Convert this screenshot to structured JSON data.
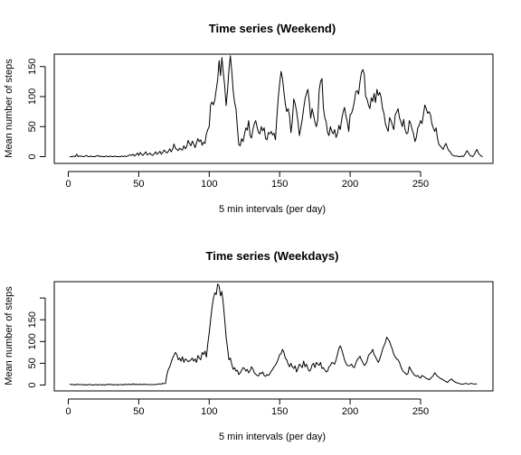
{
  "chart_data": [
    {
      "type": "line",
      "title": "Time series (Weekend)",
      "xlabel": "5 min intervals (per day)",
      "ylabel": "Mean number of steps",
      "xlim": [
        0,
        288
      ],
      "ylim": [
        0,
        170
      ],
      "xticks": [
        0,
        50,
        100,
        150,
        200,
        250
      ],
      "yticks": [
        0,
        50,
        100,
        150
      ],
      "x_start": 1,
      "values": [
        0,
        0,
        0,
        1,
        0,
        4,
        0,
        1,
        1,
        0,
        0,
        1,
        2,
        0,
        0,
        1,
        0,
        0,
        0,
        1,
        2,
        0,
        1,
        0,
        0,
        0,
        1,
        0,
        0,
        1,
        0,
        0,
        1,
        0,
        0,
        0,
        0,
        1,
        0,
        1,
        0,
        1,
        2,
        3,
        2,
        4,
        1,
        3,
        6,
        2,
        7,
        4,
        2,
        5,
        8,
        3,
        4,
        6,
        3,
        2,
        5,
        8,
        4,
        6,
        9,
        4,
        7,
        11,
        8,
        6,
        9,
        13,
        8,
        12,
        21,
        14,
        12,
        10,
        14,
        12,
        11,
        18,
        13,
        16,
        27,
        22,
        18,
        26,
        21,
        15,
        23,
        30,
        25,
        28,
        19,
        24,
        22,
        38,
        45,
        50,
        87,
        91,
        86,
        95,
        112,
        128,
        160,
        135,
        165,
        140,
        118,
        85,
        110,
        145,
        168,
        142,
        110,
        90,
        80,
        48,
        20,
        18,
        30,
        25,
        37,
        48,
        44,
        60,
        35,
        31,
        45,
        55,
        60,
        49,
        40,
        38,
        50,
        43,
        48,
        30,
        28,
        40,
        38,
        42,
        36,
        39,
        28,
        65,
        98,
        122,
        142,
        130,
        108,
        88,
        75,
        80,
        68,
        40,
        60,
        96,
        88,
        75,
        58,
        35,
        48,
        62,
        80,
        96,
        105,
        112,
        92,
        64,
        80,
        70,
        58,
        50,
        60,
        110,
        125,
        130,
        82,
        65,
        58,
        40,
        35,
        50,
        42,
        38,
        45,
        32,
        38,
        52,
        45,
        62,
        74,
        82,
        68,
        58,
        42,
        70,
        72,
        80,
        92,
        108,
        110,
        104,
        125,
        140,
        145,
        138,
        100,
        96,
        86,
        80,
        98,
        92,
        105,
        90,
        112,
        102,
        107,
        98,
        80,
        72,
        55,
        48,
        42,
        65,
        60,
        52,
        45,
        70,
        74,
        80,
        65,
        58,
        50,
        62,
        45,
        38,
        40,
        60,
        55,
        45,
        38,
        25,
        32,
        48,
        52,
        60,
        55,
        70,
        86,
        80,
        72,
        75,
        70,
        55,
        48,
        42,
        48,
        30,
        20,
        18,
        15,
        12,
        18,
        22,
        15,
        10,
        8,
        4,
        2,
        1,
        1,
        1,
        0,
        0,
        1,
        0,
        2,
        6,
        10,
        6,
        2,
        1,
        0,
        3,
        8,
        12,
        6,
        3,
        1,
        0
      ]
    },
    {
      "type": "line",
      "title": "Time series (Weekdays)",
      "xlabel": "5 min intervals (per day)",
      "ylabel": "Mean number of steps",
      "xlim": [
        0,
        288
      ],
      "ylim": [
        0,
        235
      ],
      "xticks": [
        0,
        50,
        100,
        150,
        200,
        250
      ],
      "yticks": [
        0,
        50,
        100,
        150
      ],
      "x_start": 1,
      "values": [
        2,
        1,
        1,
        1,
        0,
        2,
        1,
        1,
        1,
        1,
        0,
        1,
        0,
        1,
        1,
        1,
        0,
        0,
        1,
        1,
        0,
        1,
        1,
        0,
        1,
        0,
        1,
        1,
        2,
        1,
        1,
        0,
        1,
        1,
        0,
        1,
        1,
        1,
        0,
        2,
        1,
        1,
        2,
        1,
        1,
        3,
        1,
        2,
        1,
        1,
        2,
        1,
        1,
        2,
        1,
        1,
        1,
        1,
        1,
        1,
        1,
        1,
        2,
        2,
        3,
        2,
        4,
        3,
        4,
        25,
        36,
        42,
        52,
        62,
        68,
        75,
        70,
        58,
        62,
        55,
        65,
        52,
        60,
        58,
        54,
        55,
        58,
        62,
        55,
        60,
        52,
        68,
        62,
        58,
        75,
        70,
        78,
        64,
        95,
        120,
        150,
        178,
        200,
        212,
        208,
        232,
        228,
        205,
        215,
        186,
        150,
        110,
        85,
        58,
        62,
        48,
        36,
        40,
        32,
        34,
        24,
        28,
        34,
        40,
        38,
        32,
        36,
        28,
        33,
        42,
        37,
        28,
        25,
        22,
        21,
        28,
        26,
        30,
        22,
        20,
        24,
        22,
        26,
        32,
        36,
        42,
        46,
        52,
        60,
        70,
        72,
        82,
        75,
        62,
        58,
        48,
        42,
        50,
        42,
        38,
        44,
        30,
        38,
        48,
        44,
        40,
        55,
        42,
        48,
        38,
        32,
        35,
        46,
        50,
        40,
        52,
        48,
        45,
        52,
        38,
        40,
        35,
        30,
        32,
        42,
        45,
        52,
        50,
        48,
        58,
        70,
        84,
        90,
        82,
        70,
        58,
        50,
        45,
        44,
        45,
        48,
        42,
        40,
        50,
        58,
        62,
        66,
        58,
        52,
        45,
        48,
        55,
        68,
        72,
        75,
        82,
        70,
        65,
        58,
        52,
        60,
        70,
        82,
        90,
        98,
        110,
        105,
        100,
        90,
        82,
        70,
        65,
        60,
        58,
        52,
        42,
        35,
        30,
        28,
        24,
        26,
        42,
        36,
        30,
        25,
        22,
        20,
        22,
        18,
        16,
        22,
        20,
        18,
        15,
        14,
        12,
        15,
        18,
        22,
        28,
        24,
        20,
        18,
        15,
        14,
        12,
        10,
        8,
        6,
        9,
        12,
        14,
        10,
        8,
        6,
        5,
        4,
        3,
        2,
        2,
        3,
        4,
        3,
        2,
        3,
        4,
        3,
        2,
        3,
        2
      ]
    }
  ]
}
